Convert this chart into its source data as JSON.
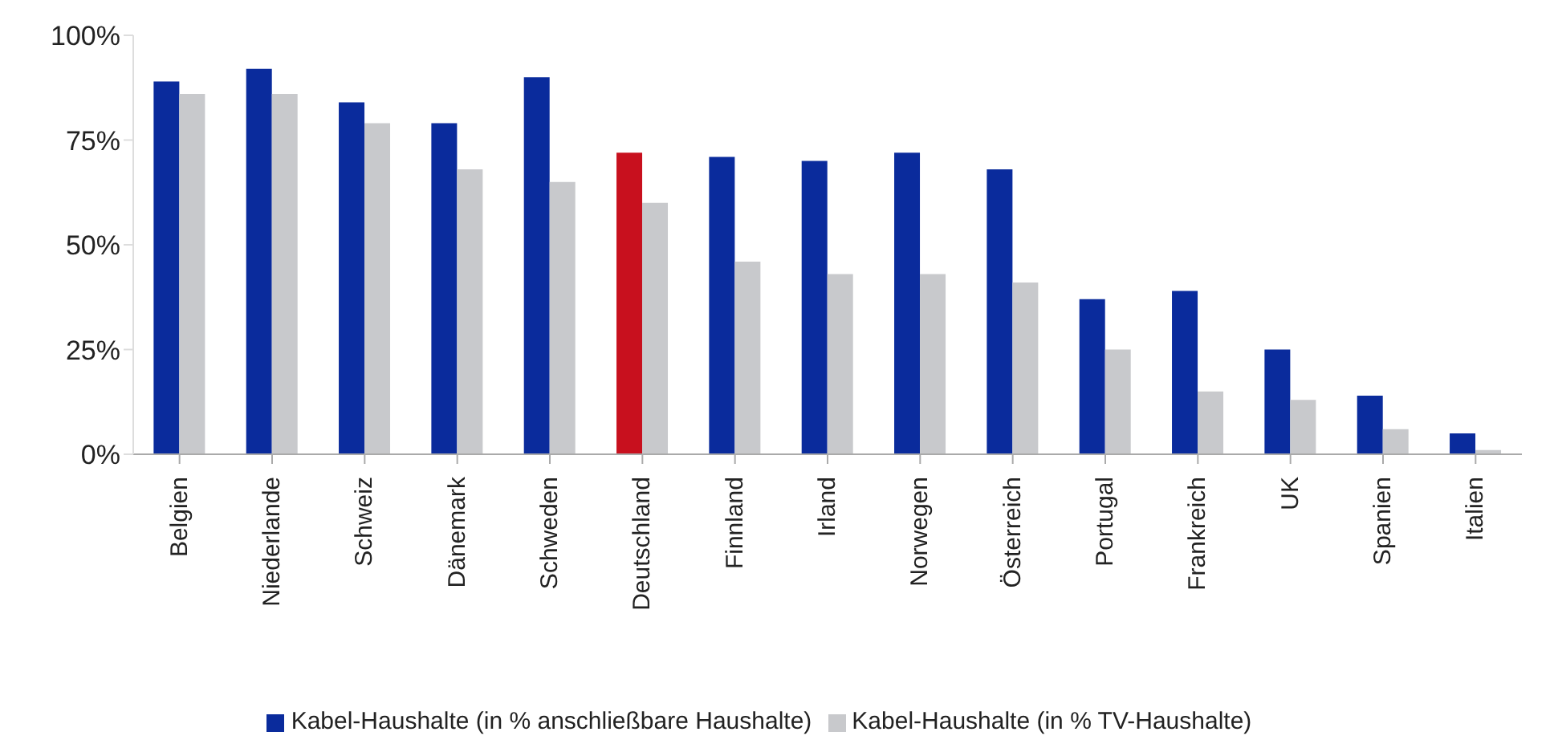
{
  "chart_data": {
    "type": "bar",
    "categories": [
      "Belgien",
      "Niederlande",
      "Schweiz",
      "Dänemark",
      "Schweden",
      "Deutschland",
      "Finnland",
      "Irland",
      "Norwegen",
      "Österreich",
      "Portugal",
      "Frankreich",
      "UK",
      "Spanien",
      "Italien"
    ],
    "series": [
      {
        "name": "Kabel-Haushalte (in % anschließbare Haushalte)",
        "color": "#0a2b9c",
        "colors": [
          "#0a2b9c",
          "#0a2b9c",
          "#0a2b9c",
          "#0a2b9c",
          "#0a2b9c",
          "#c8101e",
          "#0a2b9c",
          "#0a2b9c",
          "#0a2b9c",
          "#0a2b9c",
          "#0a2b9c",
          "#0a2b9c",
          "#0a2b9c",
          "#0a2b9c",
          "#0a2b9c"
        ],
        "values": [
          89,
          92,
          84,
          79,
          90,
          72,
          71,
          70,
          72,
          68,
          37,
          39,
          25,
          14,
          5
        ]
      },
      {
        "name": "Kabel-Haushalte (in % TV-Haushalte)",
        "color": "#c8c9cc",
        "values": [
          86,
          86,
          79,
          68,
          65,
          60,
          46,
          43,
          43,
          41,
          25,
          15,
          13,
          6,
          1
        ]
      }
    ],
    "ylim": [
      0,
      100
    ],
    "yticks": [
      {
        "value": 0,
        "label": "0%"
      },
      {
        "value": 25,
        "label": "25%"
      },
      {
        "value": 50,
        "label": "50%"
      },
      {
        "value": 75,
        "label": "75%"
      },
      {
        "value": 100,
        "label": "100%"
      }
    ],
    "legend": "bottom"
  }
}
